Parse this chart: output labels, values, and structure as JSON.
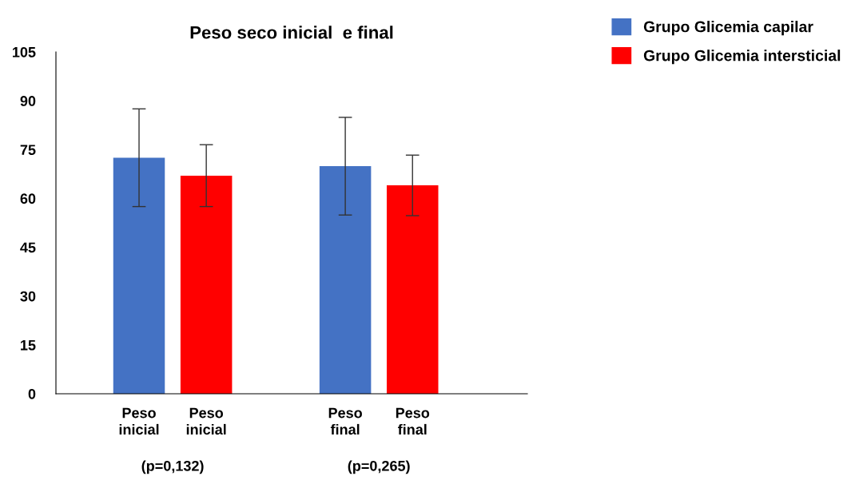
{
  "chart_data": {
    "type": "bar",
    "title": "Peso seco inicial  e final",
    "categories": [
      "Peso\ninicial",
      "Peso\nfinal"
    ],
    "series": [
      {
        "name": "Grupo Glicemia capilar",
        "color": "#4472c4",
        "values": [
          72.5,
          69.9
        ],
        "errors": [
          15,
          15
        ]
      },
      {
        "name": "Grupo Glicemia intersticial",
        "color": "#ff0000",
        "values": [
          67.0,
          64.0
        ],
        "errors": [
          9.5,
          9.3
        ]
      }
    ],
    "ylim": [
      0,
      105
    ],
    "yticks": [
      0,
      15,
      30,
      45,
      60,
      75,
      90,
      105
    ],
    "grid": false,
    "legend": "top right",
    "annotations": [
      "(p=0,132)",
      "(p=0,265)"
    ]
  }
}
